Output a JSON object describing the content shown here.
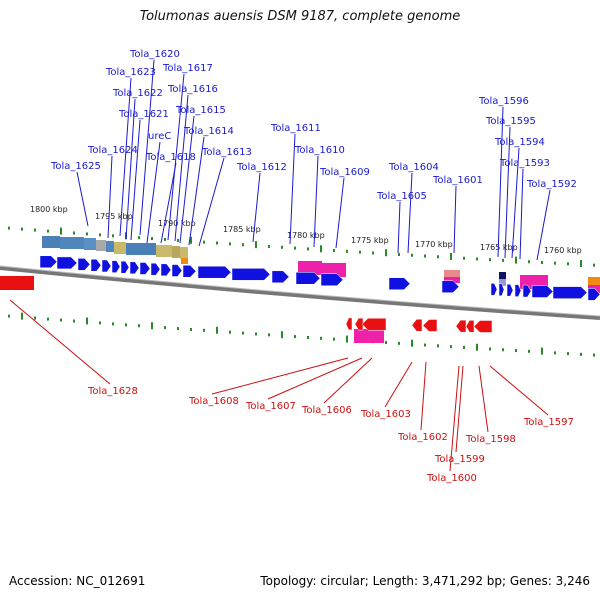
{
  "title": "Tolumonas auensis DSM 9187, complete genome",
  "footer": {
    "accession": "Accession: NC_012691",
    "summary": "Topology: circular; Length: 3,471,292 bp; Genes: 3,246"
  },
  "colors": {
    "forward_gene": "#1010e0",
    "reverse_gene": "#e81010",
    "forward_label": "#1a1ad0",
    "reverse_label": "#cc1010",
    "tick": "#2a8a2a",
    "backbone": "#777777",
    "rna": "#ee22aa"
  },
  "scale_labels": [
    "1800 kbp",
    "1795 kbp",
    "1790 kbp",
    "1785 kbp",
    "1780 kbp",
    "1775 kbp",
    "1770 kbp",
    "1765 kbp",
    "1760 kbp"
  ],
  "forward_labels": [
    "Tola_1620",
    "Tola_1623",
    "Tola_1617",
    "Tola_1622",
    "Tola_1616",
    "Tola_1621",
    "Tola_1615",
    "ureC",
    "Tola_1614",
    "Tola_1624",
    "Tola_1618",
    "Tola_1613",
    "Tola_1625",
    "Tola_1612",
    "Tola_1611",
    "Tola_1610",
    "Tola_1609",
    "Tola_1604",
    "Tola_1605",
    "Tola_1601",
    "Tola_1596",
    "Tola_1595",
    "Tola_1594",
    "Tola_1593",
    "Tola_1592"
  ],
  "reverse_labels": [
    "Tola_1628",
    "Tola_1608",
    "Tola_1607",
    "Tola_1606",
    "Tola_1603",
    "Tola_1602",
    "Tola_1599",
    "Tola_1600",
    "Tola_1598",
    "Tola_1597"
  ]
}
